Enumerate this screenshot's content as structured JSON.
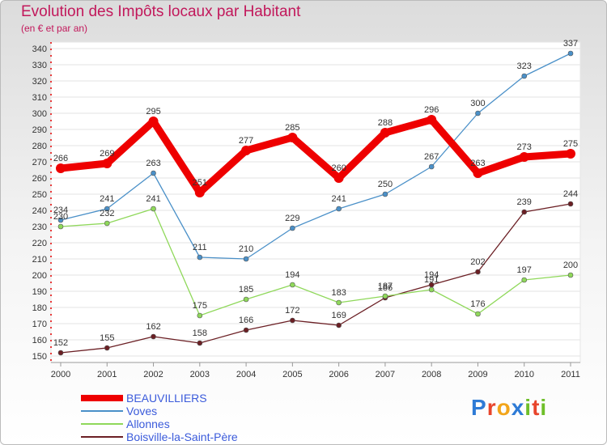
{
  "header": {
    "title": "Evolution des Impôts locaux par Habitant",
    "subtitle": "(en € et par an)"
  },
  "logo": {
    "text": "Proxiti",
    "letter_colors": [
      "#2e7bd6",
      "#e8452c",
      "#f2a51a",
      "#2e7bd6",
      "#6fbf2a",
      "#e8452c",
      "#6fbf2a"
    ]
  },
  "chart_data": {
    "type": "line",
    "x": [
      "2000",
      "2001",
      "2002",
      "2003",
      "2004",
      "2005",
      "2006",
      "2007",
      "2008",
      "2009",
      "2010",
      "2011"
    ],
    "ylim": [
      150,
      340
    ],
    "yticks": [
      150,
      160,
      170,
      180,
      190,
      200,
      210,
      220,
      230,
      240,
      250,
      260,
      270,
      280,
      290,
      300,
      310,
      320,
      330,
      340
    ],
    "grid": "horizontal",
    "legend_position": "bottom-left",
    "series": [
      {
        "name": "BEAUVILLIERS",
        "color": "#ee0000",
        "values": [
          266,
          269,
          295,
          251,
          277,
          285,
          260,
          288,
          296,
          263,
          273,
          275
        ]
      },
      {
        "name": "Voves",
        "color": "#4a90c8",
        "values": [
          234,
          241,
          263,
          211,
          210,
          229,
          241,
          250,
          267,
          300,
          323,
          337
        ]
      },
      {
        "name": "Allonnes",
        "color": "#8fd85a",
        "values": [
          230,
          232,
          241,
          175,
          185,
          194,
          183,
          187,
          191,
          176,
          197,
          200
        ]
      },
      {
        "name": "Boisville-la-Saint-Père",
        "color": "#6b1f24",
        "values": [
          152,
          155,
          162,
          158,
          166,
          172,
          169,
          186,
          194,
          202,
          239,
          244
        ]
      }
    ]
  }
}
